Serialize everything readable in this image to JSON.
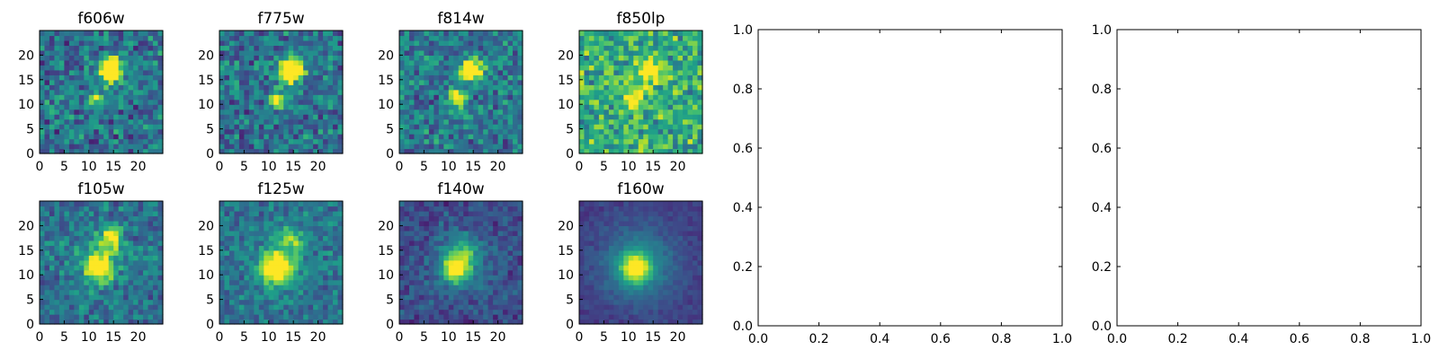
{
  "chart_data": [
    {
      "type": "heatmap",
      "title": "f606w",
      "colormap": "viridis",
      "xlim": [
        0,
        25
      ],
      "ylim": [
        0,
        25
      ],
      "xticks": [
        "0",
        "5",
        "10",
        "15",
        "20"
      ],
      "yticks": [
        "0",
        "5",
        "10",
        "15",
        "20"
      ],
      "seed": 11,
      "noise": 0.42,
      "base": 0.38,
      "sources": [
        {
          "x": 14,
          "y": 16.5,
          "amp": 1.2,
          "sigma": 1.6
        },
        {
          "x": 11,
          "y": 10.5,
          "amp": 0.45,
          "sigma": 1.1
        }
      ]
    },
    {
      "type": "heatmap",
      "title": "f775w",
      "colormap": "viridis",
      "xlim": [
        0,
        25
      ],
      "ylim": [
        0,
        25
      ],
      "xticks": [
        "0",
        "5",
        "10",
        "15",
        "20"
      ],
      "yticks": [
        "0",
        "5",
        "10",
        "15",
        "20"
      ],
      "seed": 23,
      "noise": 0.4,
      "base": 0.38,
      "sources": [
        {
          "x": 14,
          "y": 16.5,
          "amp": 1.2,
          "sigma": 1.6
        },
        {
          "x": 11,
          "y": 10.5,
          "amp": 0.7,
          "sigma": 1.1
        }
      ]
    },
    {
      "type": "heatmap",
      "title": "f814w",
      "colormap": "viridis",
      "xlim": [
        0,
        25
      ],
      "ylim": [
        0,
        25
      ],
      "xticks": [
        "0",
        "5",
        "10",
        "15",
        "20"
      ],
      "yticks": [
        "0",
        "5",
        "10",
        "15",
        "20"
      ],
      "seed": 37,
      "noise": 0.4,
      "base": 0.4,
      "sources": [
        {
          "x": 14,
          "y": 16.5,
          "amp": 1.0,
          "sigma": 1.6
        },
        {
          "x": 11,
          "y": 10.5,
          "amp": 0.8,
          "sigma": 1.2
        }
      ]
    },
    {
      "type": "heatmap",
      "title": "f850lp",
      "colormap": "viridis",
      "xlim": [
        0,
        25
      ],
      "ylim": [
        0,
        25
      ],
      "xticks": [
        "0",
        "5",
        "10",
        "15",
        "20"
      ],
      "yticks": [
        "0",
        "5",
        "10",
        "15",
        "20"
      ],
      "seed": 51,
      "noise": 0.45,
      "base": 0.62,
      "sources": [
        {
          "x": 14,
          "y": 16.5,
          "amp": 0.55,
          "sigma": 1.8
        },
        {
          "x": 11,
          "y": 10.5,
          "amp": 0.5,
          "sigma": 1.5
        }
      ]
    },
    {
      "type": "heatmap",
      "title": "f105w",
      "colormap": "viridis",
      "xlim": [
        0,
        25
      ],
      "ylim": [
        0,
        25
      ],
      "xticks": [
        "0",
        "5",
        "10",
        "15",
        "20"
      ],
      "yticks": [
        "0",
        "5",
        "10",
        "15",
        "20"
      ],
      "seed": 67,
      "noise": 0.3,
      "base": 0.38,
      "sources": [
        {
          "x": 14,
          "y": 17,
          "amp": 0.6,
          "sigma": 1.5
        },
        {
          "x": 11.5,
          "y": 11,
          "amp": 0.75,
          "sigma": 1.8
        },
        {
          "x": 12,
          "y": 13,
          "amp": 0.2,
          "sigma": 4
        }
      ]
    },
    {
      "type": "heatmap",
      "title": "f125w",
      "colormap": "viridis",
      "xlim": [
        0,
        25
      ],
      "ylim": [
        0,
        25
      ],
      "xticks": [
        "0",
        "5",
        "10",
        "15",
        "20"
      ],
      "yticks": [
        "0",
        "5",
        "10",
        "15",
        "20"
      ],
      "seed": 79,
      "noise": 0.28,
      "base": 0.38,
      "sources": [
        {
          "x": 14,
          "y": 17,
          "amp": 0.45,
          "sigma": 1.5
        },
        {
          "x": 11,
          "y": 11,
          "amp": 0.85,
          "sigma": 2.0
        },
        {
          "x": 12,
          "y": 12,
          "amp": 0.2,
          "sigma": 4
        }
      ]
    },
    {
      "type": "heatmap",
      "title": "f140w",
      "colormap": "viridis",
      "xlim": [
        0,
        25
      ],
      "ylim": [
        0,
        25
      ],
      "xticks": [
        "0",
        "5",
        "10",
        "15",
        "20"
      ],
      "yticks": [
        "0",
        "5",
        "10",
        "15",
        "20"
      ],
      "seed": 97,
      "noise": 0.22,
      "base": 0.22,
      "sources": [
        {
          "x": 11,
          "y": 11,
          "amp": 0.8,
          "sigma": 1.8
        },
        {
          "x": 13,
          "y": 15,
          "amp": 0.25,
          "sigma": 1.6
        },
        {
          "x": 12,
          "y": 12,
          "amp": 0.25,
          "sigma": 4.5
        }
      ]
    },
    {
      "type": "heatmap",
      "title": "f160w",
      "colormap": "viridis",
      "xlim": [
        0,
        25
      ],
      "ylim": [
        0,
        25
      ],
      "xticks": [
        "0",
        "5",
        "10",
        "15",
        "20"
      ],
      "yticks": [
        "0",
        "5",
        "10",
        "15",
        "20"
      ],
      "seed": 113,
      "noise": 0.1,
      "base": 0.18,
      "sources": [
        {
          "x": 11,
          "y": 11,
          "amp": 0.75,
          "sigma": 2.0
        },
        {
          "x": 11.5,
          "y": 11.5,
          "amp": 0.3,
          "sigma": 5.5
        }
      ]
    },
    {
      "type": "empty",
      "title": "",
      "xlim": [
        0,
        1
      ],
      "ylim": [
        0,
        1
      ],
      "xticks": [
        "0.0",
        "0.2",
        "0.4",
        "0.6",
        "0.8",
        "1.0"
      ],
      "yticks": [
        "0.0",
        "0.2",
        "0.4",
        "0.6",
        "0.8",
        "1.0"
      ]
    },
    {
      "type": "empty",
      "title": "",
      "xlim": [
        0,
        1
      ],
      "ylim": [
        0,
        1
      ],
      "xticks": [
        "0.0",
        "0.2",
        "0.4",
        "0.6",
        "0.8",
        "1.0"
      ],
      "yticks": [
        "0.0",
        "0.2",
        "0.4",
        "0.6",
        "0.8",
        "1.0"
      ]
    }
  ]
}
